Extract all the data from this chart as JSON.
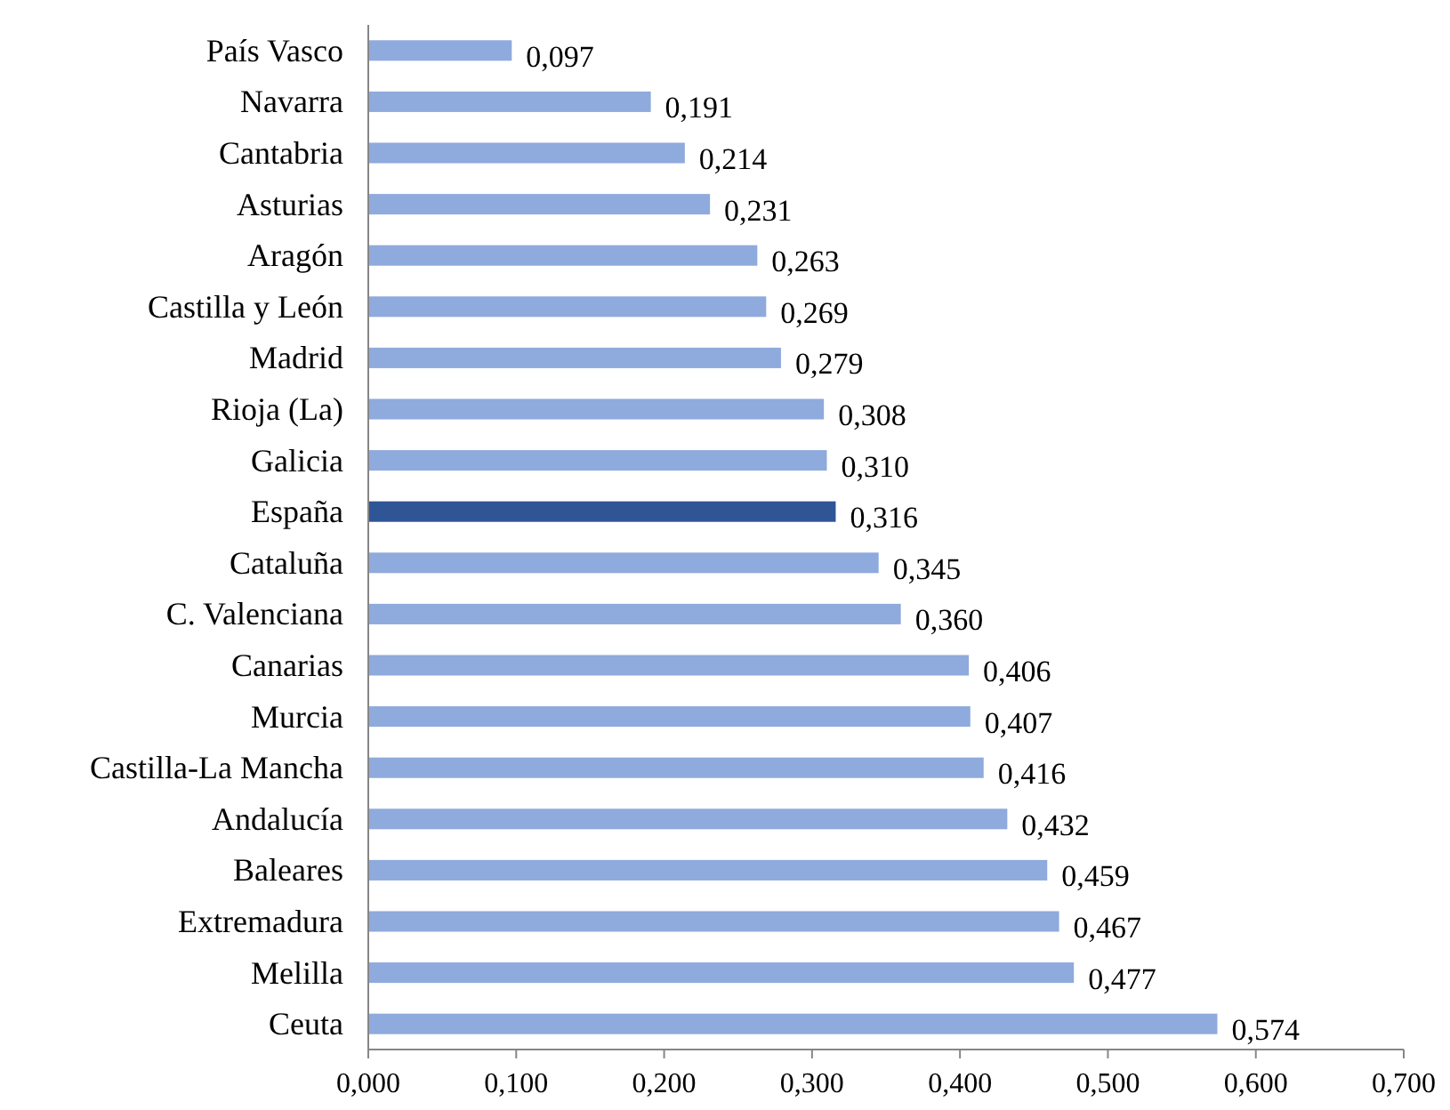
{
  "chart_data": {
    "type": "bar",
    "orientation": "horizontal",
    "categories": [
      "País Vasco",
      "Navarra",
      "Cantabria",
      "Asturias",
      "Aragón",
      "Castilla y León",
      "Madrid",
      "Rioja (La)",
      "Galicia",
      "España",
      "Cataluña",
      "C. Valenciana",
      "Canarias",
      "Murcia",
      "Castilla-La Mancha",
      "Andalucía",
      "Baleares",
      "Extremadura",
      "Melilla",
      "Ceuta"
    ],
    "values": [
      0.097,
      0.191,
      0.214,
      0.231,
      0.263,
      0.269,
      0.279,
      0.308,
      0.31,
      0.316,
      0.345,
      0.36,
      0.406,
      0.407,
      0.416,
      0.432,
      0.459,
      0.467,
      0.477,
      0.574
    ],
    "value_labels": [
      "0,097",
      "0,191",
      "0,214",
      "0,231",
      "0,263",
      "0,269",
      "0,279",
      "0,308",
      "0,310",
      "0,316",
      "0,345",
      "0,360",
      "0,406",
      "0,407",
      "0,416",
      "0,432",
      "0,459",
      "0,467",
      "0,477",
      "0,574"
    ],
    "colors": [
      "#8faadc",
      "#8faadc",
      "#8faadc",
      "#8faadc",
      "#8faadc",
      "#8faadc",
      "#8faadc",
      "#8faadc",
      "#8faadc",
      "#2f5597",
      "#8faadc",
      "#8faadc",
      "#8faadc",
      "#8faadc",
      "#8faadc",
      "#8faadc",
      "#8faadc",
      "#8faadc",
      "#8faadc",
      "#8faadc"
    ],
    "xlim": [
      0,
      0.7
    ],
    "xticks": [
      {
        "value": 0,
        "label": "0,000"
      },
      {
        "value": 0.1,
        "label": "0,100"
      },
      {
        "value": 0.2,
        "label": "0,200"
      },
      {
        "value": 0.3,
        "label": "0,300"
      },
      {
        "value": 0.4,
        "label": "0,400"
      },
      {
        "value": 0.5,
        "label": "0,500"
      },
      {
        "value": 0.6,
        "label": "0,600"
      },
      {
        "value": 0.7,
        "label": "0,700"
      }
    ],
    "grid": false
  }
}
